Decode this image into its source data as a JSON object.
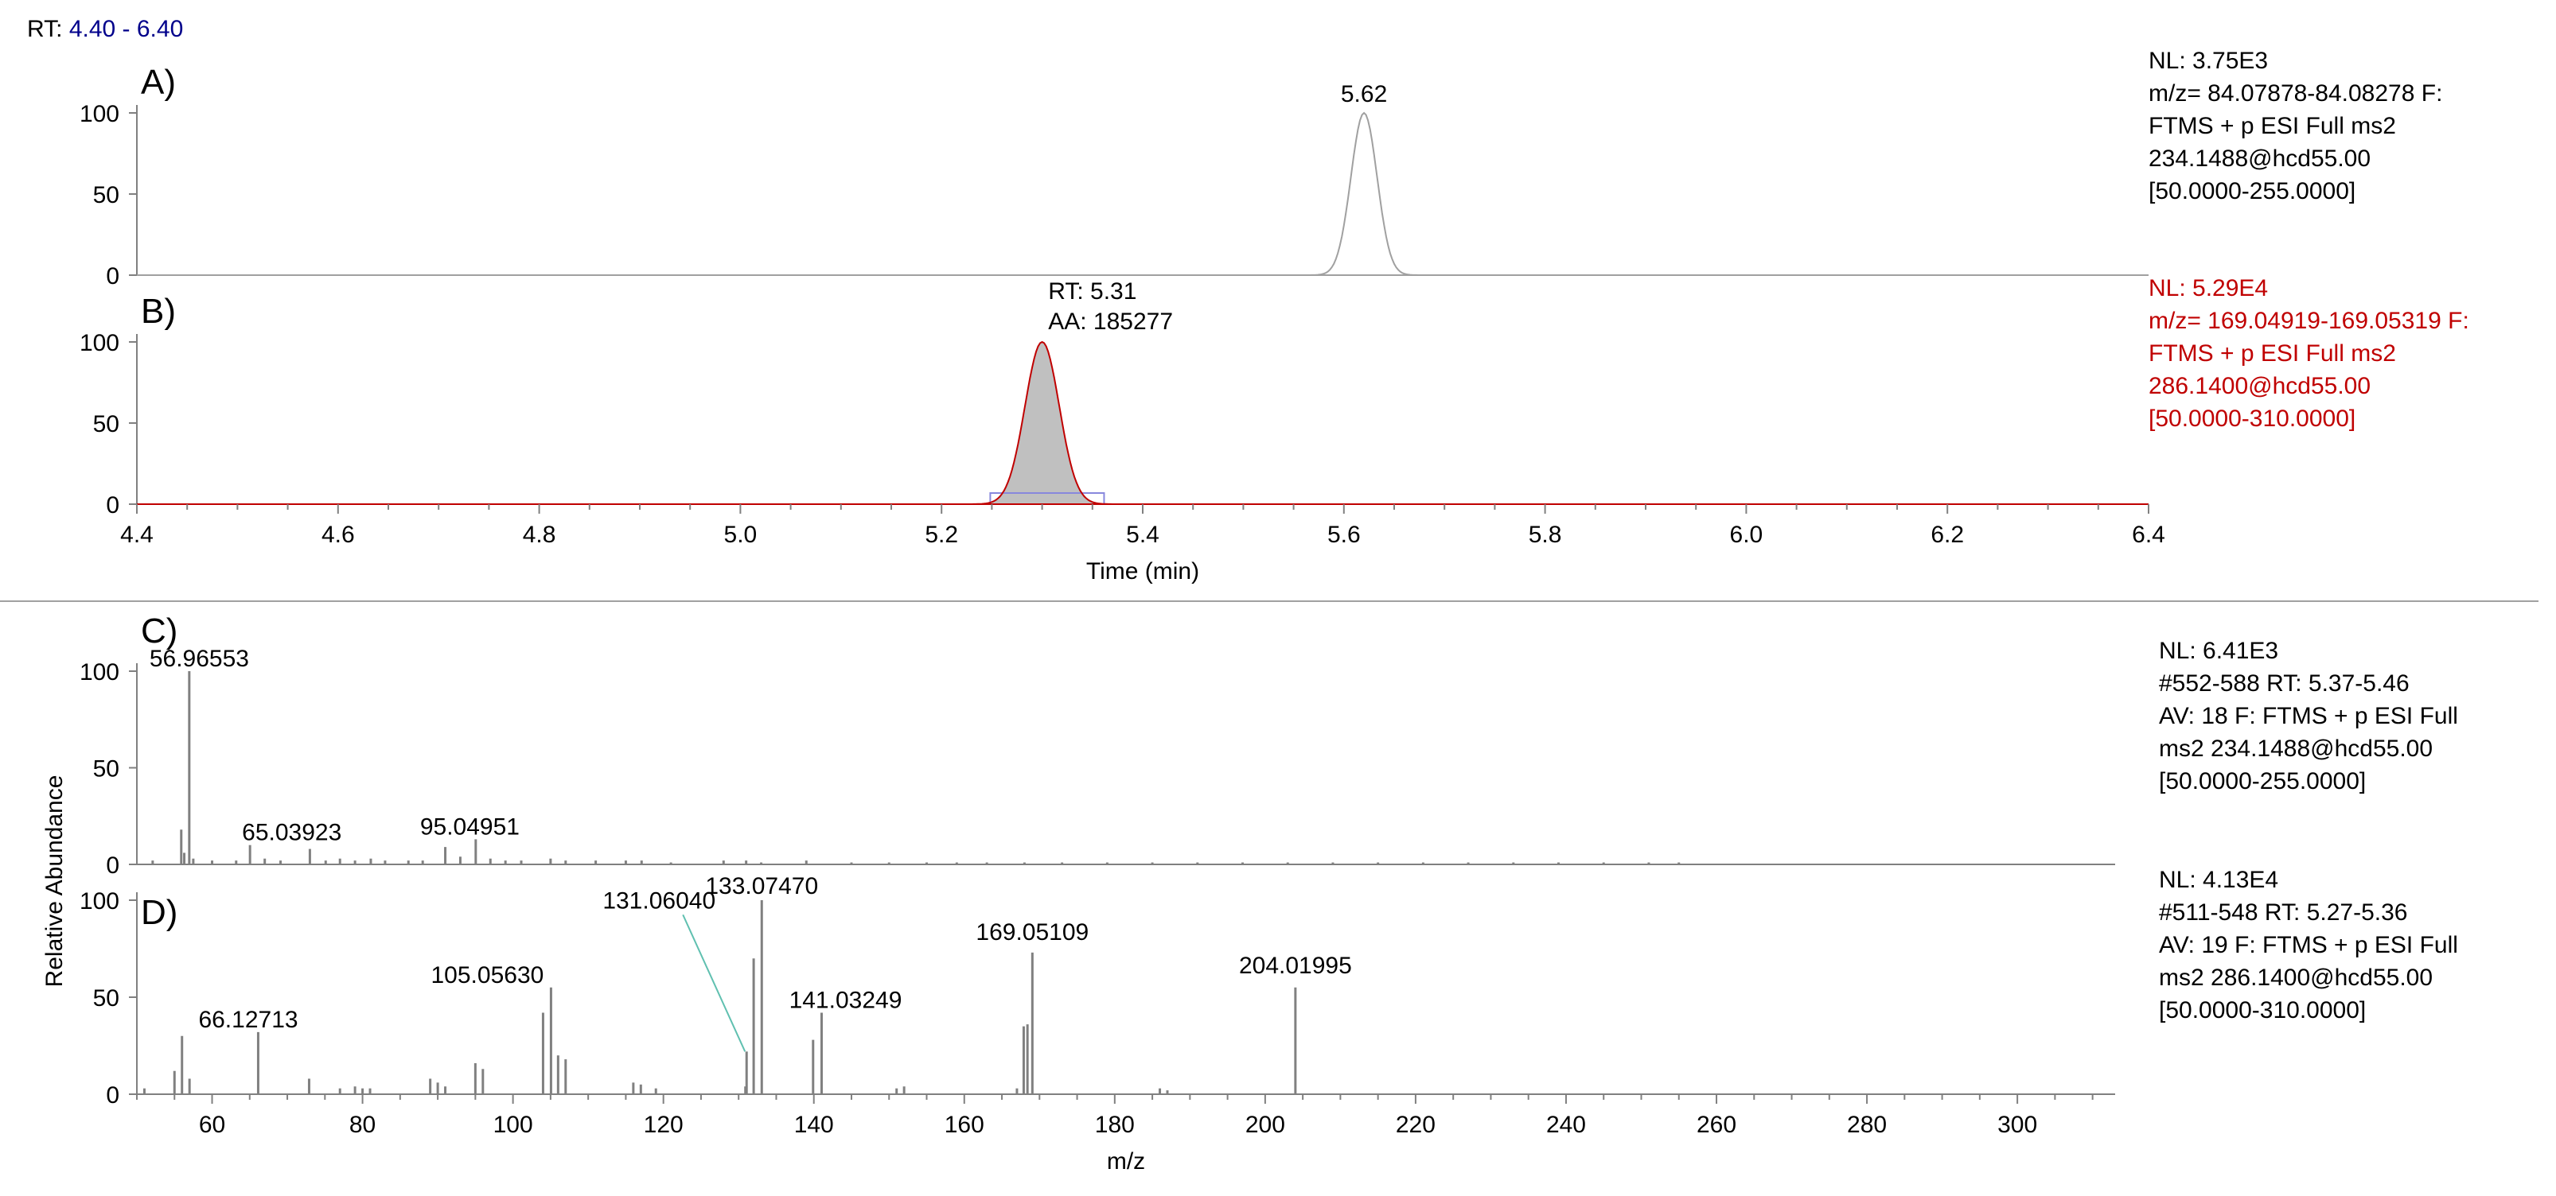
{
  "header": {
    "rt_label": "RT:",
    "rt_range": "4.40 - 6.40"
  },
  "colors": {
    "black": "#000000",
    "gray_axis": "#808080",
    "red": "#c00000",
    "blue": "#00008b",
    "peak_gray": "#a0a0a0",
    "fill_gray": "#c0c0c0",
    "teal": "#60c0b0",
    "box_blue": "#8888dd"
  },
  "chart_data": [
    {
      "id": "A",
      "type": "line",
      "panel_label": "A)",
      "x_axis": {
        "ticks": [
          "4.4",
          "4.6",
          "4.8",
          "5.0",
          "5.2",
          "5.4",
          "5.6",
          "5.8",
          "6.0",
          "6.2",
          "6.4"
        ],
        "xlim": [
          4.4,
          6.4
        ]
      },
      "y_axis": {
        "ticks": [
          "0",
          "50",
          "100"
        ],
        "ylim": [
          0,
          100
        ]
      },
      "series": [
        {
          "peak": {
            "rt": 5.62,
            "sigma": 0.013,
            "height": 100
          }
        }
      ],
      "annotations": [
        {
          "x": 5.62,
          "label": "5.62"
        }
      ],
      "info": [
        "NL: 3.75E3",
        "m/z= 84.07878-84.08278 F:",
        "FTMS + p ESI Full ms2",
        "234.1488@hcd55.00",
        "[50.0000-255.0000]"
      ]
    },
    {
      "id": "B",
      "type": "area",
      "panel_label": "B)",
      "x_axis": {
        "ticks": [
          "4.4",
          "4.6",
          "4.8",
          "5.0",
          "5.2",
          "5.4",
          "5.6",
          "5.8",
          "6.0",
          "6.2",
          "6.4"
        ],
        "xlim": [
          4.4,
          6.4
        ],
        "label": "Time (min)"
      },
      "y_axis": {
        "ticks": [
          "0",
          "50",
          "100"
        ],
        "ylim": [
          0,
          100
        ]
      },
      "series": [
        {
          "peak": {
            "rt": 5.3,
            "sigma": 0.017,
            "height": 100,
            "range": [
              5.25,
              5.36
            ]
          }
        }
      ],
      "annotations": [
        {
          "x": 5.31,
          "lines": [
            "RT: 5.31",
            "AA: 185277"
          ]
        }
      ],
      "info": [
        "NL: 5.29E4",
        "m/z= 169.04919-169.05319 F:",
        "FTMS + p ESI Full ms2",
        "286.1400@hcd55.00",
        "[50.0000-310.0000]"
      ]
    },
    {
      "id": "C",
      "type": "bar",
      "panel_label": "C)",
      "y_axis": {
        "ticks": [
          "0",
          "50",
          "100"
        ],
        "ylim": [
          0,
          100
        ]
      },
      "xlim": [
        50,
        313
      ],
      "labeled_peaks": [
        {
          "mz": 56.96553,
          "rel": 100,
          "label": "56.96553"
        },
        {
          "mz": 65.03923,
          "rel": 10,
          "label": "65.03923"
        },
        {
          "mz": 95.04951,
          "rel": 13,
          "label": "95.04951"
        }
      ],
      "minor_peaks": [
        [
          52.1,
          2
        ],
        [
          55.9,
          18
        ],
        [
          56.3,
          6
        ],
        [
          57.5,
          3
        ],
        [
          60.0,
          2
        ],
        [
          63.2,
          2
        ],
        [
          67.0,
          3
        ],
        [
          69.1,
          2
        ],
        [
          73.0,
          8
        ],
        [
          75.1,
          2
        ],
        [
          77.0,
          3
        ],
        [
          79.0,
          2
        ],
        [
          81.1,
          3
        ],
        [
          83.0,
          2
        ],
        [
          86.1,
          2
        ],
        [
          88.0,
          2
        ],
        [
          91.0,
          9
        ],
        [
          93.0,
          4
        ],
        [
          97.0,
          3
        ],
        [
          99.0,
          2
        ],
        [
          101.1,
          2
        ],
        [
          105.0,
          3
        ],
        [
          107.0,
          2
        ],
        [
          111.0,
          2
        ],
        [
          115.0,
          2
        ],
        [
          117.1,
          2
        ],
        [
          121.0,
          1
        ],
        [
          128.0,
          2
        ],
        [
          131.0,
          2
        ],
        [
          133.0,
          1
        ],
        [
          139.0,
          2
        ],
        [
          145.0,
          1
        ],
        [
          150.0,
          1
        ],
        [
          155.0,
          1
        ],
        [
          159.0,
          1
        ],
        [
          163.0,
          1
        ],
        [
          168.0,
          1
        ],
        [
          173.0,
          1
        ],
        [
          179.0,
          1
        ],
        [
          185.0,
          1
        ],
        [
          191.0,
          1
        ],
        [
          197.0,
          1
        ],
        [
          203.0,
          1
        ],
        [
          209.0,
          1
        ],
        [
          215.0,
          1
        ],
        [
          221.0,
          1
        ],
        [
          227.0,
          1
        ],
        [
          233.0,
          1
        ],
        [
          239.0,
          1
        ],
        [
          245.0,
          1
        ],
        [
          251.0,
          1
        ],
        [
          255.0,
          1
        ]
      ],
      "info": [
        "NL: 6.41E3",
        " #552-588  RT: 5.37-5.46",
        "AV: 18 F: FTMS + p ESI Full",
        "ms2 234.1488@hcd55.00",
        "[50.0000-255.0000]"
      ]
    },
    {
      "id": "D",
      "type": "bar",
      "panel_label": "D)",
      "x_axis": {
        "ticks": [
          "60",
          "80",
          "100",
          "120",
          "140",
          "160",
          "180",
          "200",
          "220",
          "240",
          "260",
          "280",
          "300"
        ],
        "label": "m/z"
      },
      "y_axis": {
        "ticks": [
          "0",
          "50",
          "100"
        ],
        "ylim": [
          0,
          100
        ]
      },
      "xlim": [
        50,
        313
      ],
      "y_title": "Relative Abundance",
      "labeled_peaks": [
        {
          "mz": 66.12713,
          "rel": 32,
          "label": "66.12713"
        },
        {
          "mz": 105.0563,
          "rel": 55,
          "label": "105.05630"
        },
        {
          "mz": 131.0604,
          "rel": 22,
          "label": "131.06040",
          "leader": true
        },
        {
          "mz": 133.0747,
          "rel": 100,
          "label": "133.07470"
        },
        {
          "mz": 141.03249,
          "rel": 42,
          "label": "141.03249"
        },
        {
          "mz": 169.05109,
          "rel": 73,
          "label": "169.05109"
        },
        {
          "mz": 204.01995,
          "rel": 55,
          "label": "204.01995"
        }
      ],
      "minor_peaks": [
        [
          51.0,
          3
        ],
        [
          55.0,
          12
        ],
        [
          56.0,
          30
        ],
        [
          57.0,
          8
        ],
        [
          72.9,
          8
        ],
        [
          77.0,
          3
        ],
        [
          79.0,
          4
        ],
        [
          80.0,
          3
        ],
        [
          81.0,
          3
        ],
        [
          89.0,
          8
        ],
        [
          90.0,
          6
        ],
        [
          91.0,
          4
        ],
        [
          95.0,
          16
        ],
        [
          96.0,
          13
        ],
        [
          104.0,
          42
        ],
        [
          106.0,
          20
        ],
        [
          107.0,
          18
        ],
        [
          116.0,
          6
        ],
        [
          117.0,
          5
        ],
        [
          119.0,
          3
        ],
        [
          130.9,
          4
        ],
        [
          132.0,
          70
        ],
        [
          139.9,
          28
        ],
        [
          151.0,
          3
        ],
        [
          152.0,
          4
        ],
        [
          167.0,
          3
        ],
        [
          167.9,
          35
        ],
        [
          168.4,
          36
        ],
        [
          186.0,
          3
        ],
        [
          187.0,
          2
        ]
      ],
      "info": [
        "NL: 4.13E4",
        " #511-548  RT: 5.27-5.36",
        "AV: 19 F: FTMS + p ESI Full",
        "ms2 286.1400@hcd55.00",
        "[50.0000-310.0000]"
      ]
    }
  ]
}
